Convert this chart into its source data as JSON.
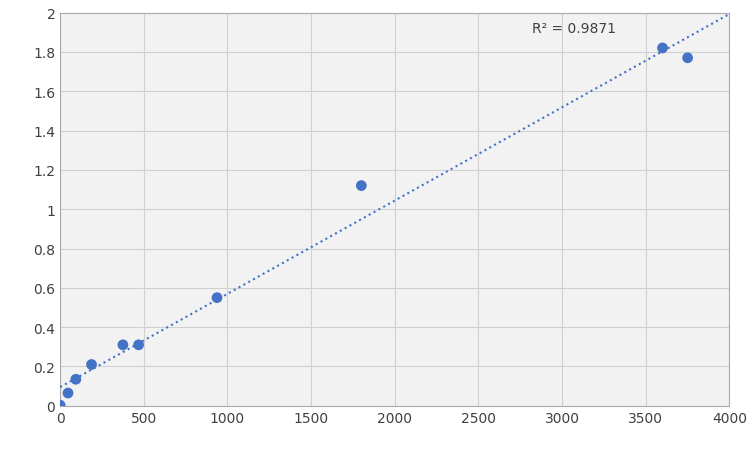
{
  "x": [
    0,
    46.88,
    93.75,
    187.5,
    375,
    468.75,
    937.5,
    1800,
    3600,
    3750
  ],
  "y": [
    0.003,
    0.065,
    0.135,
    0.21,
    0.31,
    0.31,
    0.55,
    1.12,
    1.82,
    1.77
  ],
  "dot_color": "#4472c4",
  "line_color": "#4472c4",
  "r2_text": "R² = 0.9871",
  "r2_x": 2820,
  "r2_y": 1.955,
  "xlim": [
    0,
    4000
  ],
  "ylim": [
    0,
    2
  ],
  "xticks": [
    0,
    500,
    1000,
    1500,
    2000,
    2500,
    3000,
    3500,
    4000
  ],
  "yticks": [
    0,
    0.2,
    0.4,
    0.6,
    0.8,
    1.0,
    1.2,
    1.4,
    1.6,
    1.8,
    2.0
  ],
  "grid_color": "#d0d0d0",
  "plot_bg_color": "#f2f2f2",
  "fig_bg_color": "#ffffff",
  "marker_size": 60,
  "font_color": "#404040",
  "font_size": 10,
  "line_width": 1.5
}
